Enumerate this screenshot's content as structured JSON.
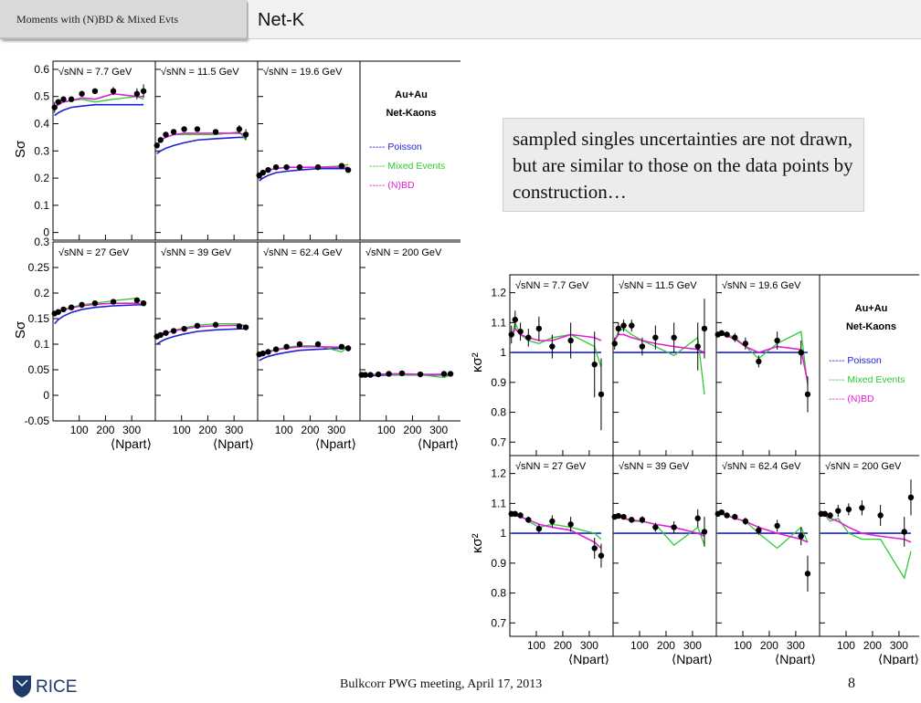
{
  "header": {
    "tab_label": "Moments with (N)BD & Mixed Evts",
    "title": "Net-K"
  },
  "note": "sampled singles uncertainties are not drawn, but are similar to those on the data points by construction…",
  "footer": {
    "meeting": "Bulkcorr PWG meeting, April 17, 2013",
    "page": "8",
    "logo_text": "RICE"
  },
  "colors": {
    "poisson": "#1f1fd6",
    "mixed": "#2ecc2e",
    "nbd": "#e21fd6",
    "data": "#000000"
  },
  "chart_data": [
    {
      "type": "scatter",
      "ylabel": "Sσ",
      "xlabel": "⟨Npart⟩",
      "ylim_top": [
        0,
        0.6
      ],
      "yticks_top": [
        "0",
        "0.1",
        "0.2",
        "0.3",
        "0.4",
        "0.5",
        "0.6"
      ],
      "ylim_bottom": [
        -0.05,
        0.3
      ],
      "yticks_bottom": [
        "-0.05",
        "0",
        "0.05",
        "0.1",
        "0.15",
        "0.2",
        "0.25",
        "0.3"
      ],
      "xlim": [
        0,
        390
      ],
      "xticks": [
        "100",
        "200",
        "300"
      ],
      "legend": {
        "system": "Au+Au",
        "species": "Net-Kaons",
        "entries": [
          "----- Poisson",
          "----- Mixed Events",
          "----- (N)BD"
        ]
      },
      "energies": [
        "√sNN = 7.7 GeV",
        "√sNN = 11.5 GeV",
        "√sNN = 19.6 GeV",
        "√sNN = 27 GeV",
        "√sNN = 39 GeV",
        "√sNN = 62.4 GeV",
        "√sNN = 200 GeV"
      ],
      "x": [
        6,
        20,
        40,
        70,
        110,
        160,
        230,
        320,
        345
      ],
      "panels": [
        {
          "label": "7.7 GeV",
          "y": [
            0.46,
            0.48,
            0.49,
            0.49,
            0.51,
            0.52,
            0.52,
            0.51,
            0.52
          ],
          "err": [
            0.02,
            0.01,
            0.01,
            0.01,
            0.01,
            0.01,
            0.015,
            0.02,
            0.025
          ],
          "poisson": [
            0.43,
            0.44,
            0.45,
            0.46,
            0.465,
            0.47,
            0.47,
            0.47,
            0.47
          ],
          "mixed": [
            0.46,
            0.47,
            0.48,
            0.485,
            0.49,
            0.48,
            0.49,
            0.5,
            0.49
          ],
          "nbd": [
            0.46,
            0.47,
            0.48,
            0.485,
            0.495,
            0.49,
            0.51,
            0.5,
            0.5
          ]
        },
        {
          "label": "11.5 GeV",
          "y": [
            0.32,
            0.34,
            0.36,
            0.37,
            0.38,
            0.38,
            0.37,
            0.38,
            0.36
          ],
          "err": [
            0.01,
            0.01,
            0.01,
            0.01,
            0.01,
            0.01,
            0.01,
            0.015,
            0.02
          ],
          "poisson": [
            0.29,
            0.3,
            0.31,
            0.32,
            0.33,
            0.34,
            0.345,
            0.35,
            0.35
          ],
          "mixed": [
            0.32,
            0.34,
            0.35,
            0.36,
            0.36,
            0.36,
            0.36,
            0.37,
            0.34
          ],
          "nbd": [
            0.32,
            0.34,
            0.35,
            0.36,
            0.365,
            0.365,
            0.365,
            0.365,
            0.36
          ]
        },
        {
          "label": "19.6 GeV",
          "y": [
            0.21,
            0.22,
            0.23,
            0.24,
            0.24,
            0.24,
            0.24,
            0.245,
            0.23
          ],
          "err": [
            0.008,
            0.006,
            0.006,
            0.006,
            0.006,
            0.006,
            0.006,
            0.006,
            0.008
          ],
          "poisson": [
            0.19,
            0.2,
            0.21,
            0.22,
            0.225,
            0.23,
            0.235,
            0.235,
            0.235
          ],
          "mixed": [
            0.21,
            0.22,
            0.23,
            0.235,
            0.24,
            0.24,
            0.24,
            0.245,
            0.25
          ],
          "nbd": [
            0.21,
            0.22,
            0.23,
            0.235,
            0.24,
            0.24,
            0.24,
            0.24,
            0.24
          ]
        },
        {
          "label": "27 GeV",
          "y": [
            0.16,
            0.163,
            0.168,
            0.172,
            0.177,
            0.18,
            0.183,
            0.186,
            0.18
          ],
          "err": [
            0.004,
            0.003,
            0.003,
            0.003,
            0.003,
            0.003,
            0.003,
            0.004,
            0.005
          ],
          "poisson": [
            0.14,
            0.148,
            0.155,
            0.162,
            0.168,
            0.172,
            0.175,
            0.177,
            0.177
          ],
          "mixed": [
            0.16,
            0.163,
            0.168,
            0.172,
            0.177,
            0.18,
            0.185,
            0.19,
            0.18
          ],
          "nbd": [
            0.16,
            0.163,
            0.167,
            0.171,
            0.175,
            0.178,
            0.18,
            0.18,
            0.178
          ]
        },
        {
          "label": "39 GeV",
          "y": [
            0.115,
            0.118,
            0.122,
            0.126,
            0.13,
            0.136,
            0.138,
            0.135,
            0.133
          ],
          "err": [
            0.003,
            0.003,
            0.003,
            0.003,
            0.003,
            0.003,
            0.003,
            0.004,
            0.005
          ],
          "poisson": [
            0.1,
            0.105,
            0.11,
            0.115,
            0.12,
            0.125,
            0.128,
            0.13,
            0.13
          ],
          "mixed": [
            0.115,
            0.118,
            0.122,
            0.127,
            0.132,
            0.137,
            0.14,
            0.14,
            0.135
          ],
          "nbd": [
            0.115,
            0.118,
            0.122,
            0.126,
            0.13,
            0.134,
            0.136,
            0.137,
            0.136
          ]
        },
        {
          "label": "62.4 GeV",
          "y": [
            0.08,
            0.082,
            0.085,
            0.09,
            0.095,
            0.1,
            0.1,
            0.095,
            0.092
          ],
          "err": [
            0.003,
            0.003,
            0.003,
            0.003,
            0.003,
            0.003,
            0.003,
            0.005,
            0.006
          ],
          "poisson": [
            0.068,
            0.072,
            0.076,
            0.08,
            0.084,
            0.088,
            0.09,
            0.092,
            0.092
          ],
          "mixed": [
            0.08,
            0.082,
            0.085,
            0.09,
            0.094,
            0.097,
            0.097,
            0.085,
            0.095
          ],
          "nbd": [
            0.08,
            0.082,
            0.085,
            0.089,
            0.092,
            0.095,
            0.095,
            0.094,
            0.094
          ]
        },
        {
          "label": "200 GeV",
          "y": [
            0.04,
            0.04,
            0.04,
            0.041,
            0.042,
            0.043,
            0.041,
            0.042,
            0.042
          ],
          "err": [
            0.002,
            0.002,
            0.002,
            0.002,
            0.002,
            0.002,
            0.002,
            0.003,
            0.004
          ],
          "poisson": [
            0.036,
            0.037,
            0.038,
            0.039,
            0.04,
            0.04,
            0.04,
            0.04,
            0.04
          ],
          "mixed": [
            0.04,
            0.04,
            0.04,
            0.041,
            0.041,
            0.04,
            0.04,
            0.035,
            0.04
          ],
          "nbd": [
            0.04,
            0.04,
            0.04,
            0.041,
            0.042,
            0.042,
            0.041,
            0.041,
            0.041
          ]
        }
      ]
    },
    {
      "type": "scatter",
      "ylabel": "κσ²",
      "xlabel": "⟨Npart⟩",
      "ylim": [
        0.65,
        1.25
      ],
      "yticks": [
        "0.7",
        "0.8",
        "0.9",
        "1",
        "1.1",
        "1.2"
      ],
      "xlim": [
        0,
        390
      ],
      "xticks": [
        "100",
        "200",
        "300"
      ],
      "legend": {
        "system": "Au+Au",
        "species": "Net-Kaons",
        "entries": [
          "----- Poisson",
          "----- Mixed Events",
          "----- (N)BD"
        ]
      },
      "energies": [
        "√sNN = 7.7 GeV",
        "√sNN = 11.5 GeV",
        "√sNN = 19.6 GeV",
        "√sNN = 27 GeV",
        "√sNN = 39 GeV",
        "√sNN = 62.4 GeV",
        "√sNN = 200 GeV"
      ],
      "x": [
        6,
        20,
        40,
        70,
        110,
        160,
        230,
        320,
        345
      ],
      "panels": [
        {
          "label": "7.7 GeV",
          "y": [
            1.06,
            1.11,
            1.07,
            1.05,
            1.08,
            1.02,
            1.04,
            0.96,
            0.86
          ],
          "err": [
            0.03,
            0.03,
            0.03,
            0.03,
            0.04,
            0.04,
            0.06,
            0.11,
            0.12
          ],
          "poisson": [
            1,
            1,
            1,
            1,
            1,
            1,
            1,
            1,
            1
          ],
          "mixed": [
            1.05,
            1.1,
            1.06,
            1.04,
            1.03,
            1.05,
            1.06,
            1.02,
            0.95
          ],
          "nbd": [
            1.05,
            1.08,
            1.06,
            1.05,
            1.04,
            1.04,
            1.06,
            1.05,
            1.04
          ]
        },
        {
          "label": "11.5 GeV",
          "y": [
            1.03,
            1.08,
            1.09,
            1.09,
            1.02,
            1.05,
            1.05,
            1.02,
            1.08
          ],
          "err": [
            0.02,
            0.02,
            0.02,
            0.02,
            0.03,
            0.04,
            0.05,
            0.08,
            0.1
          ],
          "poisson": [
            1,
            1,
            1,
            1,
            1,
            1,
            1,
            1,
            1
          ],
          "mixed": [
            1.04,
            1.07,
            1.08,
            1.06,
            1.04,
            1.02,
            0.99,
            1.05,
            0.86
          ],
          "nbd": [
            1.04,
            1.06,
            1.06,
            1.05,
            1.04,
            1.03,
            1.02,
            1.01,
            1.0
          ]
        },
        {
          "label": "19.6 GeV",
          "y": [
            1.06,
            1.065,
            1.06,
            1.05,
            1.03,
            0.97,
            1.04,
            1.0,
            0.86
          ],
          "err": [
            0.01,
            0.01,
            0.01,
            0.015,
            0.02,
            0.02,
            0.03,
            0.04,
            0.06
          ],
          "poisson": [
            1,
            1,
            1,
            1,
            1,
            1,
            1,
            1,
            1
          ],
          "mixed": [
            1.06,
            1.065,
            1.06,
            1.05,
            1.02,
            0.98,
            1.03,
            1.07,
            0.89
          ],
          "nbd": [
            1.06,
            1.06,
            1.055,
            1.045,
            1.02,
            1.0,
            1.02,
            1.01,
            0.9
          ]
        },
        {
          "label": "27 GeV",
          "y": [
            1.065,
            1.065,
            1.06,
            1.045,
            1.015,
            1.04,
            1.03,
            0.95,
            0.925
          ],
          "err": [
            0.01,
            0.01,
            0.01,
            0.01,
            0.015,
            0.02,
            0.025,
            0.035,
            0.04
          ],
          "poisson": [
            1,
            1,
            1,
            1,
            1,
            1,
            1,
            1,
            1
          ],
          "mixed": [
            1.065,
            1.065,
            1.06,
            1.04,
            1.02,
            1.03,
            1.02,
            1.0,
            0.98
          ],
          "nbd": [
            1.065,
            1.06,
            1.055,
            1.045,
            1.03,
            1.02,
            1.01,
            0.97,
            0.95
          ]
        },
        {
          "label": "39 GeV",
          "y": [
            1.055,
            1.058,
            1.055,
            1.045,
            1.045,
            1.02,
            1.02,
            1.05,
            1.005
          ],
          "err": [
            0.008,
            0.008,
            0.008,
            0.01,
            0.012,
            0.015,
            0.02,
            0.03,
            0.05
          ],
          "poisson": [
            1,
            1,
            1,
            1,
            1,
            1,
            1,
            1,
            1
          ],
          "mixed": [
            1.055,
            1.058,
            1.05,
            1.04,
            1.04,
            1.03,
            0.96,
            1.02,
            0.96
          ],
          "nbd": [
            1.055,
            1.055,
            1.05,
            1.045,
            1.04,
            1.03,
            1.02,
            1.0,
            0.99
          ]
        },
        {
          "label": "62.4 GeV",
          "y": [
            1.065,
            1.07,
            1.06,
            1.055,
            1.04,
            1.01,
            1.025,
            0.99,
            0.865
          ],
          "err": [
            0.008,
            0.008,
            0.008,
            0.01,
            0.012,
            0.015,
            0.02,
            0.03,
            0.06
          ],
          "poisson": [
            1,
            1,
            1,
            1,
            1,
            1,
            1,
            1,
            1
          ],
          "mixed": [
            1.065,
            1.07,
            1.06,
            1.05,
            1.04,
            1.0,
            0.95,
            1.02,
            0.97
          ],
          "nbd": [
            1.065,
            1.065,
            1.06,
            1.05,
            1.04,
            1.02,
            1.0,
            0.98,
            0.97
          ]
        },
        {
          "label": "200 GeV",
          "y": [
            1.065,
            1.065,
            1.06,
            1.075,
            1.08,
            1.085,
            1.06,
            1.005,
            1.12
          ],
          "err": [
            0.01,
            0.01,
            0.01,
            0.02,
            0.02,
            0.025,
            0.035,
            0.05,
            0.06
          ],
          "poisson": [
            1,
            1,
            1,
            1,
            1,
            1,
            1,
            1,
            1
          ],
          "mixed": [
            1.065,
            1.06,
            1.04,
            1.05,
            1.0,
            0.98,
            0.98,
            0.85,
            0.94
          ],
          "nbd": [
            1.065,
            1.06,
            1.05,
            1.04,
            1.02,
            1.0,
            0.99,
            0.98,
            0.97
          ]
        }
      ]
    }
  ]
}
